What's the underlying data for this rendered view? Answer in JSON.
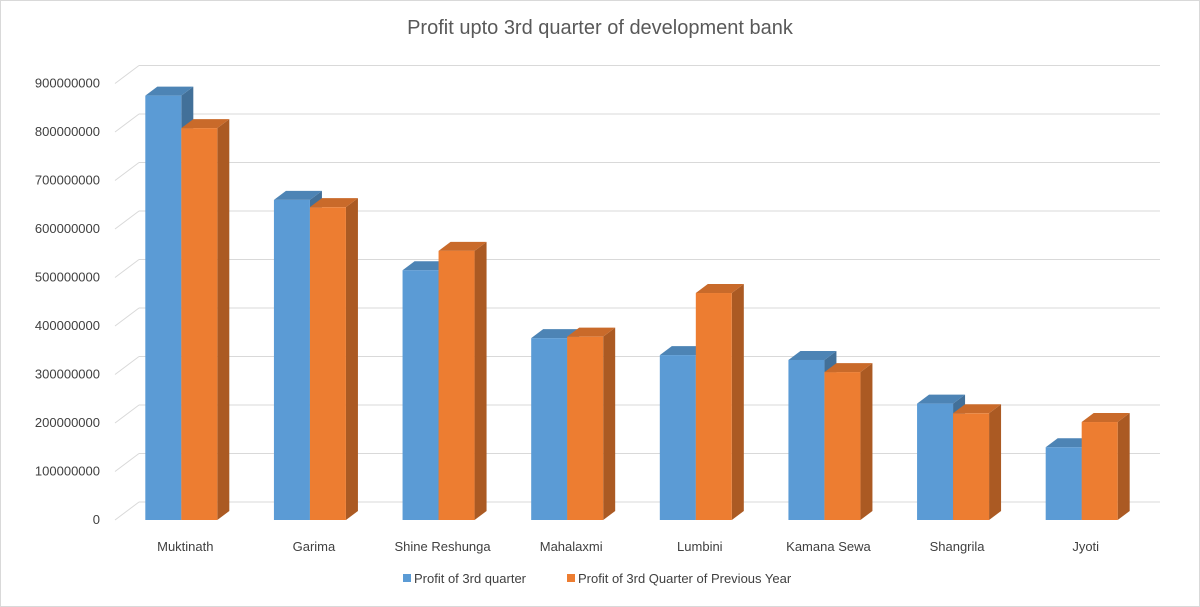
{
  "chart_data": {
    "type": "bar",
    "title": "Profit upto 3rd quarter of development bank",
    "categories": [
      "Muktinath",
      "Garima",
      "Shine Reshunga",
      "Mahalaxmi",
      "Lumbini",
      "Kamana Sewa",
      "Shangrila",
      "Jyoti"
    ],
    "series": [
      {
        "name": "Profit of 3rd quarter",
        "color": "#5b9bd5",
        "values": [
          875000000,
          660000000,
          515000000,
          375000000,
          340000000,
          330000000,
          240000000,
          150000000
        ]
      },
      {
        "name": "Profit of 3rd Quarter of Previous Year",
        "color": "#ed7d31",
        "values": [
          808000000,
          645000000,
          555000000,
          378000000,
          468000000,
          305000000,
          220000000,
          202000000
        ]
      }
    ],
    "y_ticks": [
      "0",
      "100000000",
      "200000000",
      "300000000",
      "400000000",
      "500000000",
      "600000000",
      "700000000",
      "800000000",
      "900000000"
    ],
    "ylim": [
      0,
      900000000
    ],
    "grid": true,
    "legend_position": "bottom",
    "style": "3d-clustered-column"
  }
}
